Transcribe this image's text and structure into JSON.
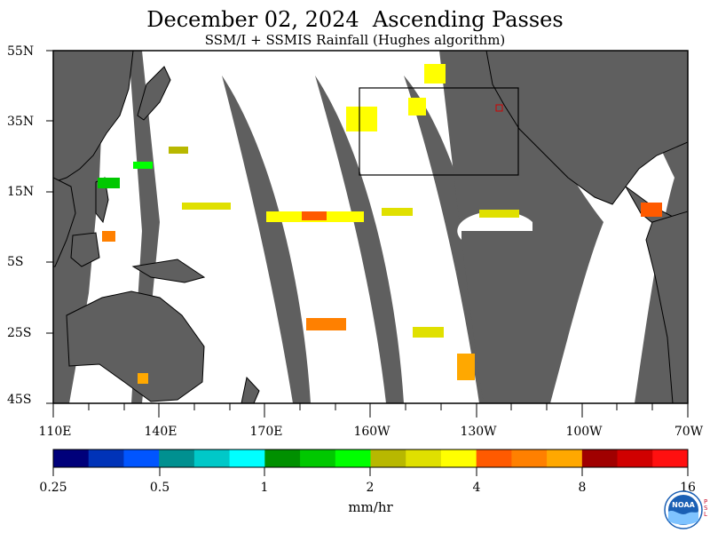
{
  "header": {
    "title": "December 02, 2024  Ascending Passes",
    "subtitle": "SSM/I + SSMIS Rainfall (Hughes algorithm)"
  },
  "axes": {
    "lat_labels": [
      "55N",
      "35N",
      "15N",
      "5S",
      "25S",
      "45S"
    ],
    "lon_labels": [
      "110E",
      "140E",
      "170E",
      "160W",
      "130W",
      "100W",
      "70W"
    ]
  },
  "colorbar": {
    "colors": [
      "#00007a",
      "#0033b8",
      "#0055ff",
      "#009090",
      "#00c8c8",
      "#00ffff",
      "#009000",
      "#00c800",
      "#00ff00",
      "#b8b800",
      "#e0e000",
      "#ffff00",
      "#ff5a00",
      "#ff8000",
      "#ffa800",
      "#a00000",
      "#d00000",
      "#ff1010"
    ],
    "tick_labels": [
      "0.25",
      "0.5",
      "1",
      "2",
      "4",
      "8",
      "16"
    ],
    "unit": "mm/hr"
  },
  "colors": {
    "land": "#5f5f5f",
    "no_data_gap": "#5f5f5f",
    "ocean_no_rain": "#ffffff",
    "box_outline": "#000000"
  },
  "logo": {
    "agency": "NOAA",
    "psl_letters": [
      "P",
      "S",
      "L"
    ]
  }
}
